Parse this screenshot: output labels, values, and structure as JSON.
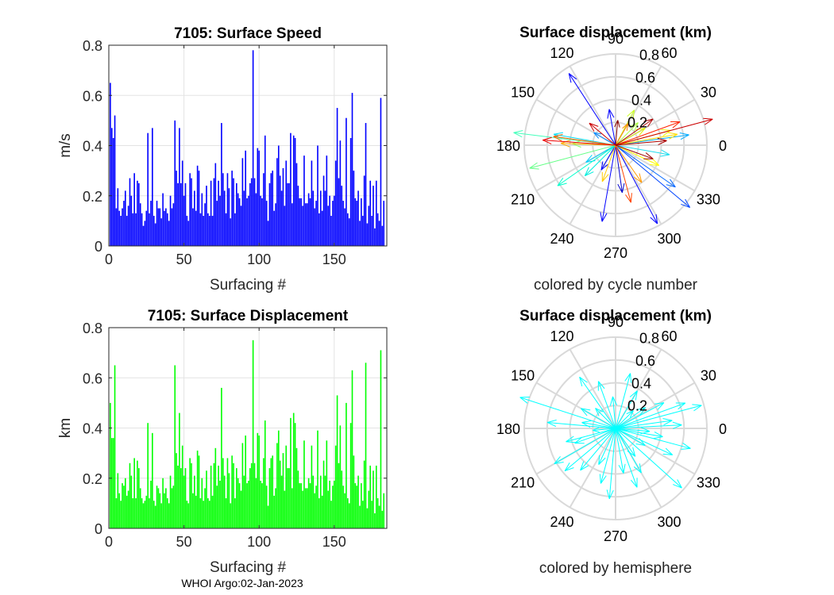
{
  "chart_data": [
    {
      "id": "speed",
      "type": "bar",
      "title": "7105: Surface Speed",
      "xlabel": "Surfacing #",
      "ylabel": "m/s",
      "xlim": [
        0,
        185
      ],
      "ylim": [
        0,
        0.8
      ],
      "xticks": [
        0,
        50,
        100,
        150
      ],
      "yticks": [
        0,
        0.2,
        0.4,
        0.6,
        0.8
      ],
      "ytick_labels": [
        "0",
        "0.2",
        "0.4",
        "0.6",
        "0.8"
      ],
      "grid": true,
      "color": "#0000ff",
      "values": [
        0.65,
        0.47,
        0.43,
        0.52,
        0.15,
        0.23,
        0.14,
        0.12,
        0.15,
        0.18,
        0.22,
        0.12,
        0.16,
        0.27,
        0.2,
        0.13,
        0.29,
        0.13,
        0.26,
        0.25,
        0.17,
        0.13,
        0.08,
        0.1,
        0.14,
        0.45,
        0.13,
        0.18,
        0.47,
        0.12,
        0.09,
        0.18,
        0.15,
        0.15,
        0.11,
        0.21,
        0.14,
        0.15,
        0.13,
        0.1,
        0.2,
        0.15,
        0.17,
        0.5,
        0.3,
        0.25,
        0.47,
        0.25,
        0.34,
        0.2,
        0.25,
        0.12,
        0.1,
        0.29,
        0.27,
        0.15,
        0.22,
        0.14,
        0.32,
        0.3,
        0.13,
        0.21,
        0.12,
        0.17,
        0.24,
        0.13,
        0.12,
        0.26,
        0.12,
        0.27,
        0.33,
        0.18,
        0.26,
        0.2,
        0.49,
        0.29,
        0.22,
        0.13,
        0.29,
        0.23,
        0.11,
        0.3,
        0.27,
        0.13,
        0.25,
        0.21,
        0.19,
        0.16,
        0.35,
        0.22,
        0.38,
        0.19,
        0.2,
        0.25,
        0.27,
        0.78,
        0.27,
        0.21,
        0.39,
        0.38,
        0.2,
        0.19,
        0.29,
        0.44,
        0.18,
        0.1,
        0.25,
        0.29,
        0.3,
        0.14,
        0.17,
        0.35,
        0.4,
        0.28,
        0.22,
        0.31,
        0.16,
        0.34,
        0.25,
        0.25,
        0.45,
        0.17,
        0.44,
        0.43,
        0.33,
        0.24,
        0.19,
        0.19,
        0.16,
        0.36,
        0.17,
        0.17,
        0.21,
        0.19,
        0.34,
        0.22,
        0.15,
        0.18,
        0.4,
        0.13,
        0.22,
        0.14,
        0.28,
        0.22,
        0.36,
        0.16,
        0.2,
        0.12,
        0.18,
        0.2,
        0.34,
        0.55,
        0.27,
        0.42,
        0.24,
        0.18,
        0.15,
        0.51,
        0.13,
        0.11,
        0.43,
        0.61,
        0.3,
        0.19,
        0.18,
        0.22,
        0.1,
        0.19,
        0.12,
        0.28,
        0.49,
        0.09,
        0.16,
        0.26,
        0.12,
        0.24,
        0.07,
        0.26,
        0.13,
        0.1,
        0.59,
        0.08,
        0.18
      ]
    },
    {
      "id": "displacement",
      "type": "bar",
      "title": "7105: Surface Displacement",
      "xlabel": "Surfacing #",
      "ylabel": "km",
      "xlim": [
        0,
        185
      ],
      "ylim": [
        0,
        0.8
      ],
      "xticks": [
        0,
        50,
        100,
        150
      ],
      "yticks": [
        0,
        0.2,
        0.4,
        0.6,
        0.8
      ],
      "ytick_labels": [
        "0",
        "0.2",
        "0.4",
        "0.6",
        "0.8"
      ],
      "grid": true,
      "color": "#00ff00",
      "values": [
        0.5,
        0.36,
        0.36,
        0.65,
        0.12,
        0.22,
        0.14,
        0.11,
        0.18,
        0.17,
        0.2,
        0.13,
        0.15,
        0.26,
        0.21,
        0.12,
        0.28,
        0.12,
        0.27,
        0.24,
        0.16,
        0.12,
        0.1,
        0.11,
        0.13,
        0.42,
        0.12,
        0.19,
        0.38,
        0.11,
        0.09,
        0.17,
        0.16,
        0.14,
        0.1,
        0.2,
        0.14,
        0.16,
        0.12,
        0.1,
        0.21,
        0.16,
        0.17,
        0.65,
        0.3,
        0.25,
        0.46,
        0.24,
        0.33,
        0.21,
        0.24,
        0.11,
        0.1,
        0.28,
        0.26,
        0.14,
        0.21,
        0.13,
        0.31,
        0.29,
        0.12,
        0.2,
        0.11,
        0.16,
        0.23,
        0.12,
        0.11,
        0.25,
        0.13,
        0.26,
        0.32,
        0.17,
        0.25,
        0.19,
        0.56,
        0.28,
        0.21,
        0.12,
        0.28,
        0.22,
        0.1,
        0.29,
        0.26,
        0.12,
        0.24,
        0.2,
        0.18,
        0.15,
        0.34,
        0.21,
        0.37,
        0.18,
        0.19,
        0.24,
        0.26,
        0.75,
        0.26,
        0.2,
        0.38,
        0.37,
        0.19,
        0.18,
        0.28,
        0.43,
        0.17,
        0.09,
        0.24,
        0.28,
        0.29,
        0.13,
        0.16,
        0.34,
        0.39,
        0.27,
        0.21,
        0.3,
        0.15,
        0.33,
        0.24,
        0.24,
        0.44,
        0.16,
        0.46,
        0.42,
        0.32,
        0.23,
        0.18,
        0.18,
        0.15,
        0.35,
        0.16,
        0.16,
        0.2,
        0.18,
        0.33,
        0.21,
        0.14,
        0.17,
        0.39,
        0.12,
        0.21,
        0.13,
        0.27,
        0.21,
        0.35,
        0.15,
        0.19,
        0.11,
        0.17,
        0.19,
        0.33,
        0.53,
        0.26,
        0.41,
        0.23,
        0.17,
        0.14,
        0.5,
        0.12,
        0.1,
        0.42,
        0.63,
        0.29,
        0.18,
        0.17,
        0.21,
        0.09,
        0.18,
        0.11,
        0.27,
        0.66,
        0.08,
        0.15,
        0.25,
        0.11,
        0.23,
        0.06,
        0.25,
        0.12,
        0.09,
        0.71,
        0.07,
        0.14
      ]
    },
    {
      "id": "polar-cycle",
      "type": "scatter",
      "plot": "compass",
      "title": "Surface displacement (km)",
      "caption": "colored by cycle number",
      "rlim": [
        0,
        0.8
      ],
      "rticks": [
        0.2,
        0.4,
        0.6,
        0.8
      ],
      "rtick_labels": [
        "0.2",
        "0.4",
        "0.6",
        "0.8"
      ],
      "theta_ticks": [
        "0",
        "30",
        "60",
        "90",
        "120",
        "150",
        "180",
        "210",
        "240",
        "270",
        "300",
        "330"
      ],
      "coloring": "cycle",
      "arrows": [
        {
          "angle": 123,
          "r": 0.75,
          "color": "#0000ff"
        },
        {
          "angle": -62,
          "r": 0.78,
          "color": "#0000ff"
        },
        {
          "angle": -100,
          "r": 0.68,
          "color": "#0000ff"
        },
        {
          "angle": -40,
          "r": 0.85,
          "color": "#0044ff"
        },
        {
          "angle": -35,
          "r": 0.64,
          "color": "#0066ff"
        },
        {
          "angle": -82,
          "r": 0.42,
          "color": "#0000cc"
        },
        {
          "angle": -120,
          "r": 0.25,
          "color": "#0000ff"
        },
        {
          "angle": 100,
          "r": 0.32,
          "color": "#0000ff"
        },
        {
          "angle": 150,
          "r": 0.22,
          "color": "#0088ff"
        },
        {
          "angle": 8,
          "r": 0.65,
          "color": "#00aaff"
        },
        {
          "angle": -150,
          "r": 0.3,
          "color": "#00ccff"
        },
        {
          "angle": 170,
          "r": 0.55,
          "color": "#00ddff"
        },
        {
          "angle": -10,
          "r": 0.48,
          "color": "#22ddee"
        },
        {
          "angle": -135,
          "r": 0.38,
          "color": "#00eedd"
        },
        {
          "angle": -145,
          "r": 0.62,
          "color": "#00ffcc"
        },
        {
          "angle": 173,
          "r": 0.9,
          "color": "#44ffbb"
        },
        {
          "angle": -165,
          "r": 0.78,
          "color": "#66ff88"
        },
        {
          "angle": 178,
          "r": 0.38,
          "color": "#88ff66"
        },
        {
          "angle": 45,
          "r": 0.28,
          "color": "#aaff44"
        },
        {
          "angle": 62,
          "r": 0.35,
          "color": "#ccff22"
        },
        {
          "angle": 30,
          "r": 0.3,
          "color": "#ddee00"
        },
        {
          "angle": 15,
          "r": 0.5,
          "color": "#eeff00"
        },
        {
          "angle": -25,
          "r": 0.42,
          "color": "#ffff00"
        },
        {
          "angle": -110,
          "r": 0.34,
          "color": "#ffcc00"
        },
        {
          "angle": 10,
          "r": 0.55,
          "color": "#ffdd00"
        },
        {
          "angle": 178,
          "r": 0.48,
          "color": "#ffaa00"
        },
        {
          "angle": -55,
          "r": 0.4,
          "color": "#ff9900"
        },
        {
          "angle": 60,
          "r": 0.22,
          "color": "#ff8800"
        },
        {
          "angle": 172,
          "r": 0.55,
          "color": "#ff6600"
        },
        {
          "angle": -75,
          "r": 0.52,
          "color": "#ff4400"
        },
        {
          "angle": 20,
          "r": 0.6,
          "color": "#ff2200"
        },
        {
          "angle": 176,
          "r": 0.64,
          "color": "#ee0000"
        },
        {
          "angle": 15,
          "r": 0.88,
          "color": "#cc0000"
        },
        {
          "angle": 140,
          "r": 0.3,
          "color": "#cc0000"
        },
        {
          "angle": 5,
          "r": 0.45,
          "color": "#aa0000"
        },
        {
          "angle": -20,
          "r": 0.35,
          "color": "#990000"
        },
        {
          "angle": 85,
          "r": 0.22,
          "color": "#880000"
        },
        {
          "angle": 35,
          "r": 0.4,
          "color": "#aa0000"
        }
      ]
    },
    {
      "id": "polar-hemisphere",
      "type": "scatter",
      "plot": "compass",
      "title": "Surface displacement (km)",
      "caption": "colored by hemisphere",
      "rlim": [
        0,
        0.8
      ],
      "rticks": [
        0.2,
        0.4,
        0.6,
        0.8
      ],
      "rtick_labels": [
        "0.2",
        "0.4",
        "0.6",
        "0.8"
      ],
      "theta_ticks": [
        "0",
        "30",
        "60",
        "90",
        "120",
        "150",
        "180",
        "210",
        "240",
        "270",
        "300",
        "330"
      ],
      "coloring": "hemisphere",
      "arrow_color": "#00ffff",
      "arrows": [
        {
          "angle": 162,
          "r": 0.88
        },
        {
          "angle": -150,
          "r": 0.62
        },
        {
          "angle": -42,
          "r": 0.78
        },
        {
          "angle": -70,
          "r": 0.55
        },
        {
          "angle": -95,
          "r": 0.62
        },
        {
          "angle": -130,
          "r": 0.48
        },
        {
          "angle": 110,
          "r": 0.44
        },
        {
          "angle": 75,
          "r": 0.5
        },
        {
          "angle": 60,
          "r": 0.38
        },
        {
          "angle": 35,
          "r": 0.32
        },
        {
          "angle": 20,
          "r": 0.65
        },
        {
          "angle": 15,
          "r": 0.78
        },
        {
          "angle": 8,
          "r": 0.5
        },
        {
          "angle": -10,
          "r": 0.42
        },
        {
          "angle": -25,
          "r": 0.55
        },
        {
          "angle": -55,
          "r": 0.3
        },
        {
          "angle": -115,
          "r": 0.35
        },
        {
          "angle": -165,
          "r": 0.45
        },
        {
          "angle": 175,
          "r": 0.6
        },
        {
          "angle": 150,
          "r": 0.35
        },
        {
          "angle": 135,
          "r": 0.25
        },
        {
          "angle": 95,
          "r": 0.28
        },
        {
          "angle": 45,
          "r": 0.22
        },
        {
          "angle": -5,
          "r": 0.3
        },
        {
          "angle": -140,
          "r": 0.58
        },
        {
          "angle": 170,
          "r": 0.3
        },
        {
          "angle": -80,
          "r": 0.4
        },
        {
          "angle": 28,
          "r": 0.48
        },
        {
          "angle": -30,
          "r": 0.3
        },
        {
          "angle": 185,
          "r": 0.2
        },
        {
          "angle": 200,
          "r": 0.38
        },
        {
          "angle": 125,
          "r": 0.55
        },
        {
          "angle": -15,
          "r": 0.68
        },
        {
          "angle": 3,
          "r": 0.58
        },
        {
          "angle": -105,
          "r": 0.5
        },
        {
          "angle": -60,
          "r": 0.45
        }
      ]
    }
  ],
  "footer": "WHOI Argo:02-Jan-2023"
}
